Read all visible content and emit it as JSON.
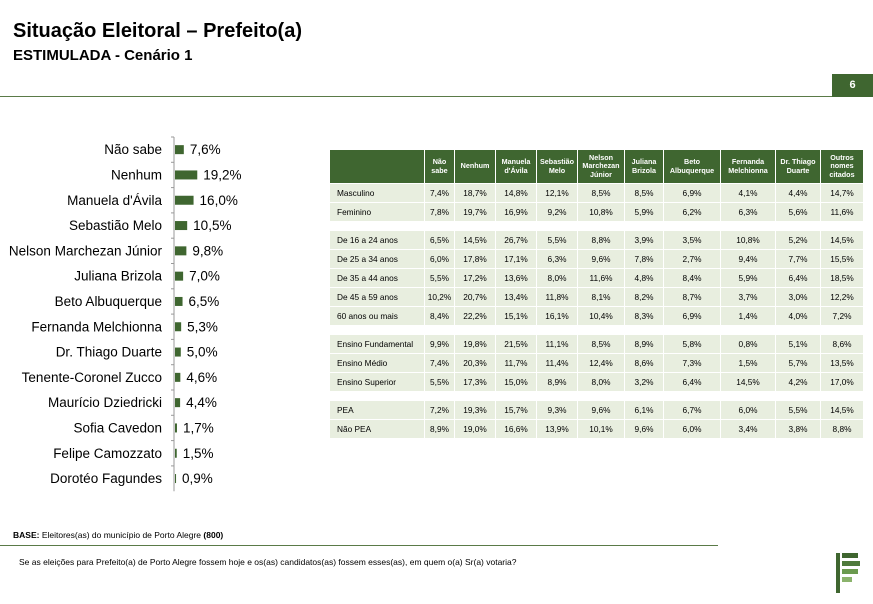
{
  "header": {
    "title": "Situação Eleitoral – Prefeito(a)",
    "subtitle": "ESTIMULADA - Cenário 1",
    "page_number": "6"
  },
  "chart_data": {
    "type": "bar",
    "orientation": "horizontal",
    "categories": [
      "Não sabe",
      "Nenhum",
      "Manuela d'Ávila",
      "Sebastião Melo",
      "Nelson Marchezan Júnior",
      "Juliana Brizola",
      "Beto Albuquerque",
      "Fernanda Melchionna",
      "Dr. Thiago Duarte",
      "Tenente-Coronel Zucco",
      "Maurício Dziedricki",
      "Sofia Cavedon",
      "Felipe Camozzato",
      "Dorotéo Fagundes"
    ],
    "values": [
      7.6,
      19.2,
      16.0,
      10.5,
      9.8,
      7.0,
      6.5,
      5.3,
      5.0,
      4.6,
      4.4,
      1.7,
      1.5,
      0.9
    ],
    "value_labels": [
      "7,6%",
      "19,2%",
      "16,0%",
      "10,5%",
      "9,8%",
      "7,0%",
      "6,5%",
      "5,3%",
      "5,0%",
      "4,6%",
      "4,4%",
      "1,7%",
      "1,5%",
      "0,9%"
    ],
    "xlim": [
      0,
      20
    ],
    "colors": {
      "bar": "#3f6630"
    }
  },
  "table": {
    "columns": [
      "",
      "Não sabe",
      "Nenhum",
      "Manuela d'Ávila",
      "Sebastião Melo",
      "Nelson Marchezan Júnior",
      "Juliana Brizola",
      "Beto Albuquerque",
      "Fernanda Melchionna",
      "Dr. Thiago Duarte",
      "Outros nomes citados"
    ],
    "groups": [
      [
        {
          "label": "Masculino",
          "values": [
            "7,4%",
            "18,7%",
            "14,8%",
            "12,1%",
            "8,5%",
            "8,5%",
            "6,9%",
            "4,1%",
            "4,4%",
            "14,7%"
          ]
        },
        {
          "label": "Feminino",
          "values": [
            "7,8%",
            "19,7%",
            "16,9%",
            "9,2%",
            "10,8%",
            "5,9%",
            "6,2%",
            "6,3%",
            "5,6%",
            "11,6%"
          ]
        }
      ],
      [
        {
          "label": "De 16 a 24 anos",
          "values": [
            "6,5%",
            "14,5%",
            "26,7%",
            "5,5%",
            "8,8%",
            "3,9%",
            "3,5%",
            "10,8%",
            "5,2%",
            "14,5%"
          ]
        },
        {
          "label": "De 25 a 34 anos",
          "values": [
            "6,0%",
            "17,8%",
            "17,1%",
            "6,3%",
            "9,6%",
            "7,8%",
            "2,7%",
            "9,4%",
            "7,7%",
            "15,5%"
          ]
        },
        {
          "label": "De 35 a 44 anos",
          "values": [
            "5,5%",
            "17,2%",
            "13,6%",
            "8,0%",
            "11,6%",
            "4,8%",
            "8,4%",
            "5,9%",
            "6,4%",
            "18,5%"
          ]
        },
        {
          "label": "De 45 a 59 anos",
          "values": [
            "10,2%",
            "20,7%",
            "13,4%",
            "11,8%",
            "8,1%",
            "8,2%",
            "8,7%",
            "3,7%",
            "3,0%",
            "12,2%"
          ]
        },
        {
          "label": "60 anos ou mais",
          "values": [
            "8,4%",
            "22,2%",
            "15,1%",
            "16,1%",
            "10,4%",
            "8,3%",
            "6,9%",
            "1,4%",
            "4,0%",
            "7,2%"
          ]
        }
      ],
      [
        {
          "label": "Ensino Fundamental",
          "values": [
            "9,9%",
            "19,8%",
            "21,5%",
            "11,1%",
            "8,5%",
            "8,9%",
            "5,8%",
            "0,8%",
            "5,1%",
            "8,6%"
          ]
        },
        {
          "label": "Ensino Médio",
          "values": [
            "7,4%",
            "20,3%",
            "11,7%",
            "11,4%",
            "12,4%",
            "8,6%",
            "7,3%",
            "1,5%",
            "5,7%",
            "13,5%"
          ]
        },
        {
          "label": "Ensino Superior",
          "values": [
            "5,5%",
            "17,3%",
            "15,0%",
            "8,9%",
            "8,0%",
            "3,2%",
            "6,4%",
            "14,5%",
            "4,2%",
            "17,0%"
          ]
        }
      ],
      [
        {
          "label": "PEA",
          "values": [
            "7,2%",
            "19,3%",
            "15,7%",
            "9,3%",
            "9,6%",
            "6,1%",
            "6,7%",
            "6,0%",
            "5,5%",
            "14,5%"
          ]
        },
        {
          "label": "Não PEA",
          "values": [
            "8,9%",
            "19,0%",
            "16,6%",
            "13,9%",
            "10,1%",
            "9,6%",
            "6,0%",
            "3,4%",
            "3,8%",
            "8,8%"
          ]
        }
      ]
    ]
  },
  "footer": {
    "base_label": "BASE:",
    "base_text": " Eleitores(as) do município de Porto Alegre ",
    "base_n": "(800)",
    "question": "Se as eleições para Prefeito(a) de Porto Alegre fossem hoje e os(as) candidatos(as) fossem esses(as), em quem o(a) Sr(a) votaria?"
  },
  "logo": {
    "icon": "company-logo-icon"
  }
}
